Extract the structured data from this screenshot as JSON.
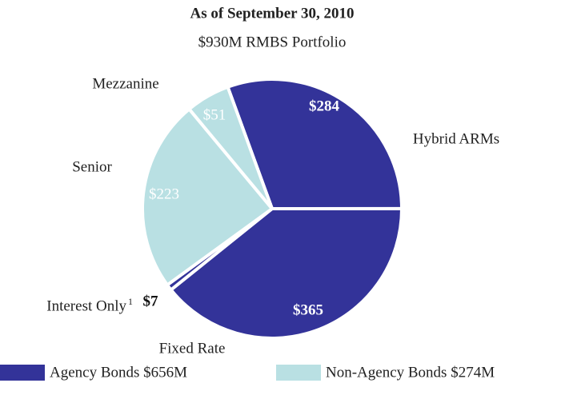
{
  "chart_data": {
    "type": "pie",
    "title": "As of September 30, 2010",
    "subtitle": "$930M RMBS Portfolio",
    "categories": [
      "Hybrid ARMs",
      "Fixed Rate",
      "Interest Only",
      "Senior",
      "Mezzanine"
    ],
    "footnote_mark": "1",
    "values": [
      284,
      365,
      7,
      223,
      51
    ],
    "value_labels": [
      "$284",
      "$365",
      "$7",
      "$223",
      "$51"
    ],
    "colors": [
      "#333399",
      "#333399",
      "#333399",
      "#b9e0e3",
      "#b9e0e3"
    ],
    "legend": [
      {
        "label": "Agency Bonds $656M",
        "color": "#333399"
      },
      {
        "label": "Non-Agency Bonds $274M",
        "color": "#b9e0e3"
      }
    ]
  }
}
